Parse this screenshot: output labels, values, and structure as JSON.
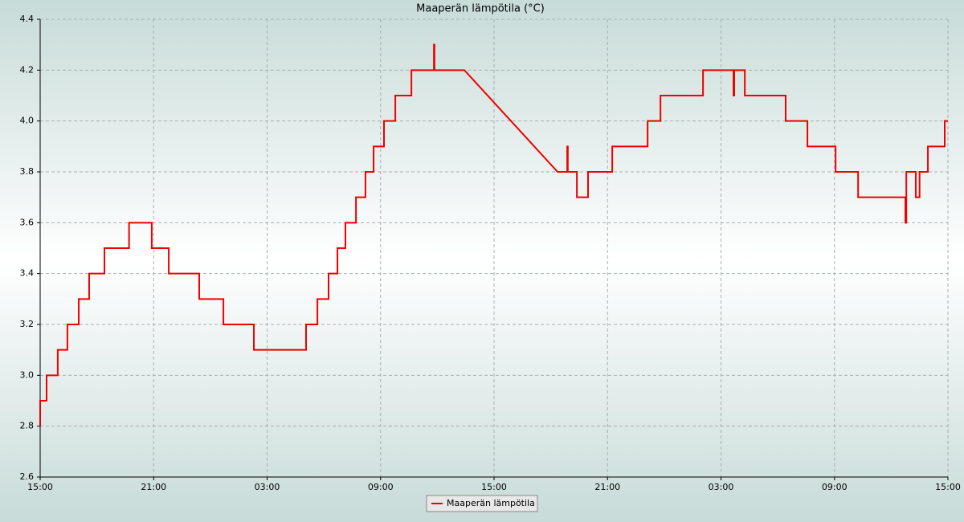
{
  "chart_data": {
    "type": "line",
    "title": "Maaperän lämpötila (°C)",
    "x": [
      0,
      0,
      0.34,
      0.34,
      0.93,
      0.93,
      1.44,
      1.44,
      2.04,
      2.04,
      2.59,
      2.59,
      3.4,
      3.4,
      4.7,
      4.7,
      5.9,
      5.9,
      6.8,
      6.8,
      8.41,
      8.41,
      9.69,
      9.69,
      11.3,
      11.3,
      14.06,
      14.06,
      14.66,
      14.66,
      15.25,
      15.25,
      15.72,
      15.72,
      16.14,
      16.14,
      16.7,
      16.7,
      17.2,
      17.2,
      17.63,
      17.63,
      18.18,
      18.18,
      18.78,
      18.78,
      19.63,
      19.63,
      20.82,
      20.82,
      20.85,
      20.85,
      22.43,
      27.36,
      27.87,
      27.87,
      27.9,
      27.9,
      28.38,
      28.38,
      28.97,
      28.97,
      30.25,
      30.25,
      32.12,
      32.12,
      32.8,
      32.8,
      35.05,
      35.05,
      36.66,
      36.66,
      36.7,
      36.7,
      37.26,
      37.26,
      39.42,
      39.42,
      40.57,
      40.57,
      42.06,
      42.06,
      43.25,
      43.25,
      45.75,
      45.75,
      45.8,
      45.8,
      46.3,
      46.3,
      46.5,
      46.5,
      46.94,
      46.94,
      47.83,
      47.83,
      48
    ],
    "series": [
      {
        "name": "Maaperän lämpötila",
        "color": "#ee0000",
        "values": [
          2.8,
          2.9,
          2.9,
          3.0,
          3.0,
          3.1,
          3.1,
          3.2,
          3.2,
          3.3,
          3.3,
          3.4,
          3.4,
          3.5,
          3.5,
          3.6,
          3.6,
          3.5,
          3.5,
          3.4,
          3.4,
          3.3,
          3.3,
          3.2,
          3.2,
          3.1,
          3.1,
          3.2,
          3.2,
          3.3,
          3.3,
          3.4,
          3.4,
          3.5,
          3.5,
          3.6,
          3.6,
          3.7,
          3.7,
          3.8,
          3.8,
          3.9,
          3.9,
          4.0,
          4.0,
          4.1,
          4.1,
          4.2,
          4.2,
          4.3,
          4.3,
          4.2,
          4.2,
          3.8,
          3.8,
          3.9,
          3.9,
          3.8,
          3.8,
          3.7,
          3.7,
          3.8,
          3.8,
          3.9,
          3.9,
          4.0,
          4.0,
          4.1,
          4.1,
          4.2,
          4.2,
          4.1,
          4.1,
          4.2,
          4.2,
          4.1,
          4.1,
          4.0,
          4.0,
          3.9,
          3.9,
          3.8,
          3.8,
          3.7,
          3.7,
          3.6,
          3.6,
          3.8,
          3.8,
          3.7,
          3.7,
          3.8,
          3.8,
          3.9,
          3.9,
          4.0,
          4.0
        ]
      }
    ],
    "xlim": [
      0,
      48
    ],
    "xticks": [
      {
        "value": 0,
        "label": "15:00"
      },
      {
        "value": 6,
        "label": "21:00"
      },
      {
        "value": 12,
        "label": "03:00"
      },
      {
        "value": 18,
        "label": "09:00"
      },
      {
        "value": 24,
        "label": "15:00"
      },
      {
        "value": 30,
        "label": "21:00"
      },
      {
        "value": 36,
        "label": "03:00"
      },
      {
        "value": 42,
        "label": "09:00"
      },
      {
        "value": 48,
        "label": "15:00"
      }
    ],
    "ylim": [
      2.6,
      4.4
    ],
    "yticks": [
      2.6,
      2.8,
      {
        "value": 3,
        "label": "3.0"
      },
      3.2,
      3.4,
      3.6,
      3.8,
      {
        "value": 4,
        "label": "4.0"
      },
      4.2,
      4.4
    ],
    "grid": true,
    "legend": "bottom"
  }
}
